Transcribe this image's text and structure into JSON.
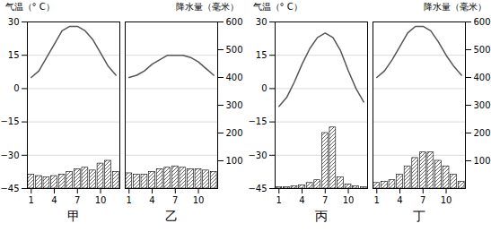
{
  "chart_data": [
    {
      "type": "bar",
      "title": "甲",
      "ylabel": "气温（° C）",
      "x": [
        1,
        2,
        3,
        4,
        5,
        6,
        7,
        8,
        9,
        10,
        11,
        12
      ],
      "xlim": [
        0.5,
        12.5
      ],
      "xticks": [
        1,
        4,
        7,
        10
      ],
      "ylim": [
        -45,
        30
      ],
      "yticks": [
        30,
        15,
        0,
        -15,
        -30,
        -45
      ],
      "y2lim": [
        0,
        600
      ],
      "grid": true,
      "series": [
        {
          "type": "line",
          "color": "#555555",
          "values": [
            5,
            8,
            14,
            20,
            26,
            28,
            28,
            26,
            22,
            16,
            10,
            6
          ]
        },
        {
          "type": "bar",
          "axis": "y2",
          "color": "#ffffff",
          "values": [
            50,
            45,
            40,
            45,
            50,
            60,
            70,
            75,
            65,
            90,
            100,
            60
          ]
        }
      ]
    },
    {
      "type": "bar",
      "title": "乙",
      "y2label": "降水量（毫米）",
      "x": [
        1,
        2,
        3,
        4,
        5,
        6,
        7,
        8,
        9,
        10,
        11,
        12
      ],
      "xlim": [
        0.5,
        12.5
      ],
      "xticks": [
        1,
        4,
        7,
        10
      ],
      "ylim": [
        -45,
        30
      ],
      "yticks": [
        30,
        15,
        0,
        -15,
        -30,
        -45
      ],
      "y2lim": [
        0,
        600
      ],
      "y2ticks": [
        100,
        200,
        300,
        400,
        500,
        600
      ],
      "grid": true,
      "series": [
        {
          "type": "line",
          "color": "#555555",
          "values": [
            5,
            6,
            8,
            11,
            13,
            15,
            15,
            15,
            14,
            12,
            9,
            6
          ]
        },
        {
          "type": "bar",
          "axis": "y2",
          "color": "#ffffff",
          "values": [
            55,
            50,
            50,
            60,
            70,
            75,
            80,
            75,
            70,
            70,
            65,
            60
          ]
        }
      ]
    },
    {
      "type": "bar",
      "title": "丙",
      "ylabel": "气温（° C）",
      "x": [
        1,
        2,
        3,
        4,
        5,
        6,
        7,
        8,
        9,
        10,
        11,
        12
      ],
      "xlim": [
        0.5,
        12.5
      ],
      "xticks": [
        1,
        4,
        7,
        10
      ],
      "ylim": [
        -45,
        30
      ],
      "yticks": [
        30,
        15,
        0,
        -15,
        -30,
        -45
      ],
      "y2lim": [
        0,
        600
      ],
      "grid": true,
      "series": [
        {
          "type": "line",
          "color": "#555555",
          "values": [
            -8,
            -4,
            3,
            11,
            18,
            23,
            25,
            23,
            17,
            8,
            0,
            -6
          ]
        },
        {
          "type": "bar",
          "axis": "y2",
          "color": "#ffffff",
          "values": [
            5,
            5,
            8,
            12,
            20,
            30,
            200,
            220,
            40,
            15,
            8,
            5
          ]
        }
      ]
    },
    {
      "type": "bar",
      "title": "丁",
      "y2label": "降水量（毫米）",
      "x": [
        1,
        2,
        3,
        4,
        5,
        6,
        7,
        8,
        9,
        10,
        11,
        12
      ],
      "xlim": [
        0.5,
        12.5
      ],
      "xticks": [
        1,
        4,
        7,
        10
      ],
      "ylim": [
        -45,
        30
      ],
      "yticks": [
        30,
        15,
        0,
        -15,
        -30,
        -45
      ],
      "y2lim": [
        0,
        600
      ],
      "y2ticks": [
        100,
        200,
        300,
        400,
        500,
        600
      ],
      "grid": true,
      "series": [
        {
          "type": "line",
          "color": "#555555",
          "values": [
            5,
            8,
            13,
            19,
            25,
            28,
            28,
            26,
            21,
            15,
            10,
            6
          ]
        },
        {
          "type": "bar",
          "axis": "y2",
          "color": "#ffffff",
          "values": [
            20,
            25,
            30,
            50,
            80,
            110,
            130,
            130,
            100,
            80,
            50,
            25
          ]
        }
      ]
    }
  ]
}
